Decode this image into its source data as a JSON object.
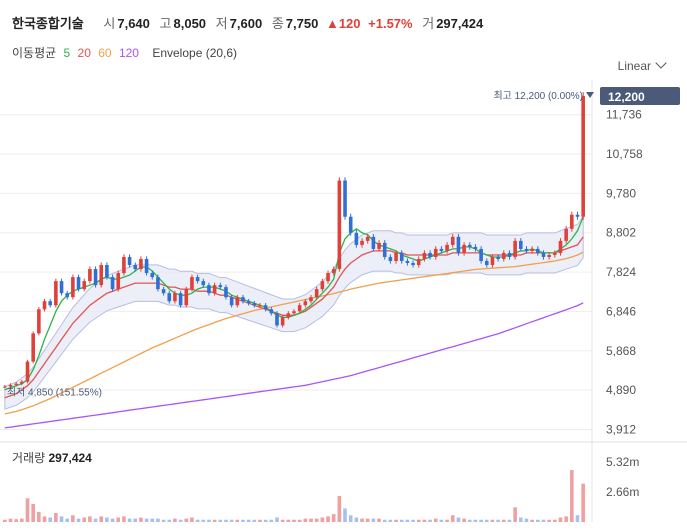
{
  "header": {
    "name": "한국종합기술",
    "open_label": "시",
    "open": "7,640",
    "high_label": "고",
    "high": "8,050",
    "low_label": "저",
    "low": "7,600",
    "close_label": "종",
    "close": "7,750",
    "change": "▲120",
    "change_pct": "+1.57%",
    "volume_label": "거",
    "volume": "297,424"
  },
  "legend": {
    "ma_label": "이동평균",
    "ma5": "5",
    "ma20": "20",
    "ma60": "60",
    "ma120": "120",
    "envelope": "Envelope (20,6)"
  },
  "scale_selector": "Linear",
  "volume_panel": {
    "label": "거래량",
    "value": "297,424"
  },
  "colors": {
    "up": "#e0403a",
    "down": "#2f6fd6",
    "ma5": "#2db34a",
    "ma20": "#e05454",
    "ma60": "#f0a04b",
    "ma120": "#a855f7",
    "price_tag": "#4a5a78"
  },
  "chart_data": {
    "type": "candlestick",
    "ylim": [
      3700,
      12400
    ],
    "y_ticks": [
      "3,912",
      "4,890",
      "5,868",
      "6,846",
      "7,824",
      "8,802",
      "9,780",
      "10,758",
      "11,736"
    ],
    "y_tick_values": [
      3912,
      4890,
      5868,
      6846,
      7824,
      8802,
      9780,
      10758,
      11736
    ],
    "current_price_label": "12,200",
    "current_price": 12200,
    "max_annotation": "최고 12,200 (0.00%)",
    "min_annotation": "최저 4,850 (151.55%)",
    "volume_ticks": [
      "5.32m",
      "2.66m"
    ],
    "volume_tick_values": [
      5320000,
      2660000
    ],
    "close_series": [
      4980,
      5020,
      5050,
      5100,
      5600,
      6300,
      6900,
      7100,
      7000,
      7600,
      7300,
      7200,
      7700,
      7400,
      7600,
      7900,
      7500,
      8000,
      7700,
      7400,
      7800,
      8200,
      8000,
      7900,
      8150,
      7800,
      7700,
      7400,
      7300,
      7100,
      7300,
      7000,
      7400,
      7700,
      7600,
      7500,
      7300,
      7500,
      7450,
      7200,
      7000,
      7200,
      7100,
      7050,
      7000,
      7000,
      6900,
      6800,
      6500,
      6700,
      6800,
      6850,
      7000,
      7100,
      7200,
      7400,
      7600,
      7800,
      7900,
      10100,
      9200,
      8800,
      8500,
      8600,
      8700,
      8400,
      8550,
      8200,
      8100,
      8300,
      8100,
      8050,
      8000,
      8150,
      8300,
      8200,
      8400,
      8350,
      8500,
      8700,
      8300,
      8500,
      8450,
      8400,
      8100,
      8000,
      8200,
      8150,
      8300,
      8200,
      8600,
      8400,
      8350,
      8400,
      8300,
      8200,
      8250,
      8300,
      8600,
      8900,
      9250,
      9200,
      12200
    ],
    "ma5": [
      4900,
      4950,
      5000,
      5050,
      5150,
      5400,
      5750,
      6150,
      6500,
      6850,
      7100,
      7250,
      7350,
      7400,
      7450,
      7500,
      7550,
      7650,
      7700,
      7650,
      7650,
      7700,
      7750,
      7850,
      7950,
      7950,
      7850,
      7700,
      7550,
      7400,
      7300,
      7250,
      7250,
      7300,
      7400,
      7450,
      7450,
      7450,
      7400,
      7350,
      7250,
      7200,
      7150,
      7100,
      7050,
      7000,
      6950,
      6850,
      6750,
      6700,
      6700,
      6750,
      6800,
      6900,
      7000,
      7150,
      7300,
      7450,
      7650,
      8300,
      8650,
      8800,
      8900,
      8800,
      8750,
      8600,
      8500,
      8450,
      8400,
      8350,
      8250,
      8200,
      8150,
      8100,
      8150,
      8200,
      8250,
      8300,
      8350,
      8400,
      8400,
      8450,
      8450,
      8400,
      8300,
      8250,
      8200,
      8200,
      8200,
      8250,
      8300,
      8350,
      8350,
      8400,
      8350,
      8300,
      8300,
      8300,
      8400,
      8500,
      8650,
      8850,
      9200
    ],
    "envelope_mid": [
      4700,
      4750,
      4800,
      4900,
      5000,
      5150,
      5350,
      5550,
      5750,
      5950,
      6150,
      6350,
      6550,
      6700,
      6850,
      7000,
      7100,
      7200,
      7300,
      7350,
      7400,
      7450,
      7500,
      7550,
      7550,
      7550,
      7550,
      7550,
      7500,
      7450,
      7450,
      7400,
      7400,
      7400,
      7350,
      7350,
      7350,
      7300,
      7250,
      7250,
      7200,
      7150,
      7100,
      7050,
      7000,
      6950,
      6900,
      6850,
      6800,
      6750,
      6750,
      6750,
      6800,
      6850,
      6950,
      7050,
      7150,
      7300,
      7450,
      7700,
      7900,
      8050,
      8150,
      8250,
      8300,
      8350,
      8350,
      8350,
      8350,
      8300,
      8300,
      8250,
      8250,
      8250,
      8250,
      8250,
      8250,
      8250,
      8250,
      8300,
      8300,
      8300,
      8300,
      8300,
      8300,
      8250,
      8250,
      8250,
      8250,
      8250,
      8250,
      8250,
      8300,
      8300,
      8300,
      8300,
      8300,
      8300,
      8350,
      8400,
      8450,
      8500,
      8700
    ],
    "ma60": [
      4300,
      4330,
      4360,
      4400,
      4450,
      4500,
      4560,
      4620,
      4680,
      4750,
      4820,
      4890,
      4960,
      5030,
      5100,
      5170,
      5240,
      5310,
      5380,
      5450,
      5520,
      5590,
      5660,
      5730,
      5800,
      5870,
      5940,
      6000,
      6060,
      6120,
      6180,
      6240,
      6300,
      6360,
      6420,
      6470,
      6520,
      6570,
      6620,
      6670,
      6710,
      6750,
      6790,
      6830,
      6870,
      6900,
      6930,
      6960,
      6990,
      7020,
      7050,
      7080,
      7110,
      7140,
      7170,
      7200,
      7230,
      7260,
      7290,
      7330,
      7360,
      7400,
      7430,
      7460,
      7490,
      7520,
      7550,
      7570,
      7590,
      7610,
      7630,
      7650,
      7670,
      7690,
      7710,
      7730,
      7750,
      7770,
      7790,
      7810,
      7830,
      7850,
      7870,
      7890,
      7900,
      7910,
      7920,
      7930,
      7940,
      7950,
      7960,
      7980,
      8000,
      8020,
      8040,
      8060,
      8080,
      8100,
      8130,
      8160,
      8200,
      8250,
      8320
    ],
    "ma120": [
      3950,
      3970,
      3990,
      4010,
      4030,
      4050,
      4070,
      4090,
      4110,
      4130,
      4150,
      4170,
      4190,
      4210,
      4230,
      4250,
      4270,
      4290,
      4310,
      4330,
      4350,
      4370,
      4390,
      4410,
      4430,
      4450,
      4470,
      4490,
      4510,
      4530,
      4550,
      4570,
      4590,
      4610,
      4630,
      4650,
      4670,
      4690,
      4710,
      4730,
      4750,
      4770,
      4790,
      4810,
      4830,
      4850,
      4870,
      4890,
      4910,
      4930,
      4950,
      4970,
      4990,
      5010,
      5040,
      5070,
      5100,
      5130,
      5160,
      5190,
      5220,
      5250,
      5290,
      5330,
      5370,
      5410,
      5450,
      5490,
      5530,
      5570,
      5610,
      5650,
      5690,
      5730,
      5770,
      5810,
      5850,
      5890,
      5930,
      5970,
      6010,
      6050,
      6090,
      6130,
      6170,
      6210,
      6250,
      6290,
      6340,
      6390,
      6440,
      6490,
      6540,
      6590,
      6640,
      6690,
      6740,
      6790,
      6840,
      6890,
      6940,
      6990,
      7060
    ],
    "volume": [
      0.2,
      0.3,
      0.25,
      0.3,
      2.1,
      1.6,
      0.9,
      0.5,
      0.4,
      0.8,
      0.5,
      0.3,
      0.6,
      0.3,
      0.4,
      0.5,
      0.3,
      0.5,
      0.4,
      0.3,
      0.4,
      0.5,
      0.3,
      0.3,
      0.4,
      0.3,
      0.3,
      0.3,
      0.2,
      0.2,
      0.3,
      0.2,
      0.3,
      0.4,
      0.2,
      0.2,
      0.2,
      0.2,
      0.2,
      0.2,
      0.2,
      0.2,
      0.2,
      0.2,
      0.2,
      0.2,
      0.2,
      0.2,
      0.4,
      0.2,
      0.2,
      0.2,
      0.2,
      0.3,
      0.3,
      0.3,
      0.4,
      0.5,
      0.7,
      2.3,
      1.2,
      0.6,
      0.4,
      0.3,
      0.3,
      0.3,
      0.3,
      0.2,
      0.2,
      0.2,
      0.2,
      0.2,
      0.2,
      0.2,
      0.2,
      0.2,
      0.3,
      0.2,
      0.2,
      0.6,
      0.4,
      0.3,
      0.2,
      0.2,
      0.2,
      0.2,
      0.2,
      0.2,
      0.2,
      0.2,
      1.3,
      0.4,
      0.3,
      0.2,
      0.2,
      0.2,
      0.2,
      0.2,
      0.4,
      0.5,
      4.6,
      0.6,
      3.4
    ]
  }
}
